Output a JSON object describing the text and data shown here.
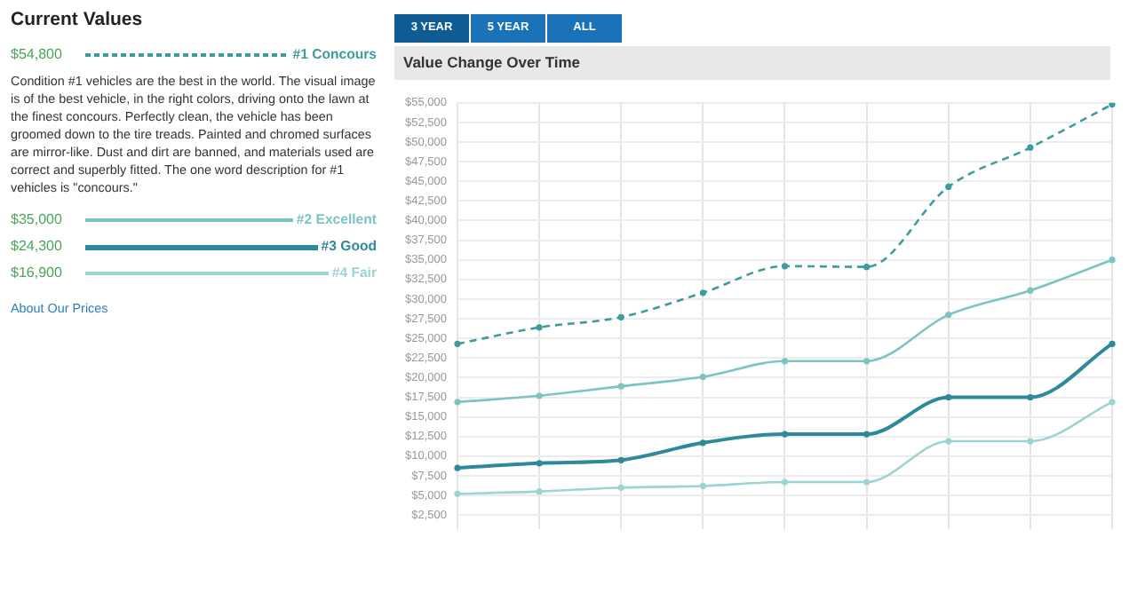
{
  "chart_data": {
    "type": "line",
    "title": "Value Change Over Time",
    "categories": [
      null,
      null,
      null,
      null,
      null,
      null,
      null,
      null,
      null
    ],
    "series": [
      {
        "name": "#1 Concours",
        "color": "#3f9c9c",
        "line_style": "dashed",
        "values": [
          24300,
          26400,
          27700,
          30800,
          34200,
          34100,
          44300,
          49300,
          54800
        ]
      },
      {
        "name": "#2 Excellent",
        "color": "#7cc4c4",
        "line_style": "solid",
        "values": [
          16900,
          17700,
          18900,
          20100,
          22100,
          22100,
          28000,
          31100,
          35000
        ]
      },
      {
        "name": "#3 Good",
        "color": "#2e8a9a",
        "line_style": "solid",
        "values": [
          8500,
          9100,
          9500,
          11700,
          12800,
          12800,
          17500,
          17500,
          24300
        ]
      },
      {
        "name": "#4 Fair",
        "color": "#9cd4d4",
        "line_style": "solid",
        "values": [
          5200,
          5500,
          6000,
          6200,
          6700,
          6700,
          11900,
          11900,
          16900
        ]
      }
    ],
    "ylim": [
      2500,
      55000
    ],
    "yticks": [
      {
        "value": 2500,
        "label": "$2,500"
      },
      {
        "value": 5000,
        "label": "$5,000"
      },
      {
        "value": 7500,
        "label": "$7,500"
      },
      {
        "value": 10000,
        "label": "$10,000"
      },
      {
        "value": 12500,
        "label": "$12,500"
      },
      {
        "value": 15000,
        "label": "$15,000"
      },
      {
        "value": 17500,
        "label": "$17,500"
      },
      {
        "value": 20000,
        "label": "$20,000"
      },
      {
        "value": 22500,
        "label": "$22,500"
      },
      {
        "value": 25000,
        "label": "$25,000"
      },
      {
        "value": 27500,
        "label": "$27,500"
      },
      {
        "value": 30000,
        "label": "$30,000"
      },
      {
        "value": 32500,
        "label": "$32,500"
      },
      {
        "value": 35000,
        "label": "$35,000"
      },
      {
        "value": 37500,
        "label": "$37,500"
      },
      {
        "value": 40000,
        "label": "$40,000"
      },
      {
        "value": 42500,
        "label": "$42,500"
      },
      {
        "value": 45000,
        "label": "$45,000"
      },
      {
        "value": 47500,
        "label": "$47,500"
      },
      {
        "value": 50000,
        "label": "$50,000"
      },
      {
        "value": 52500,
        "label": "$52,500"
      },
      {
        "value": 55000,
        "label": "$55,000"
      }
    ],
    "tick_labels": "y",
    "grid": true,
    "legend": "left",
    "marker": "circle",
    "annotations": [
      "Current Values",
      "$54,800",
      "$35,000",
      "$24,300",
      "$16,900",
      "Condition #1 vehicles are the best in the world. The visual image is of the best vehicle, in the right colors, driving onto the lawn at the finest concours. Perfectly clean, the vehicle has been groomed down to the tire treads. Painted and chromed surfaces are mirror-like. Dust and dirt are banned, and materials used are correct and superbly fitted. The one word description for #1 vehicles is \"concours.\"",
      "About Our Prices",
      "3 YEAR",
      "5 YEAR",
      "ALL"
    ]
  }
}
